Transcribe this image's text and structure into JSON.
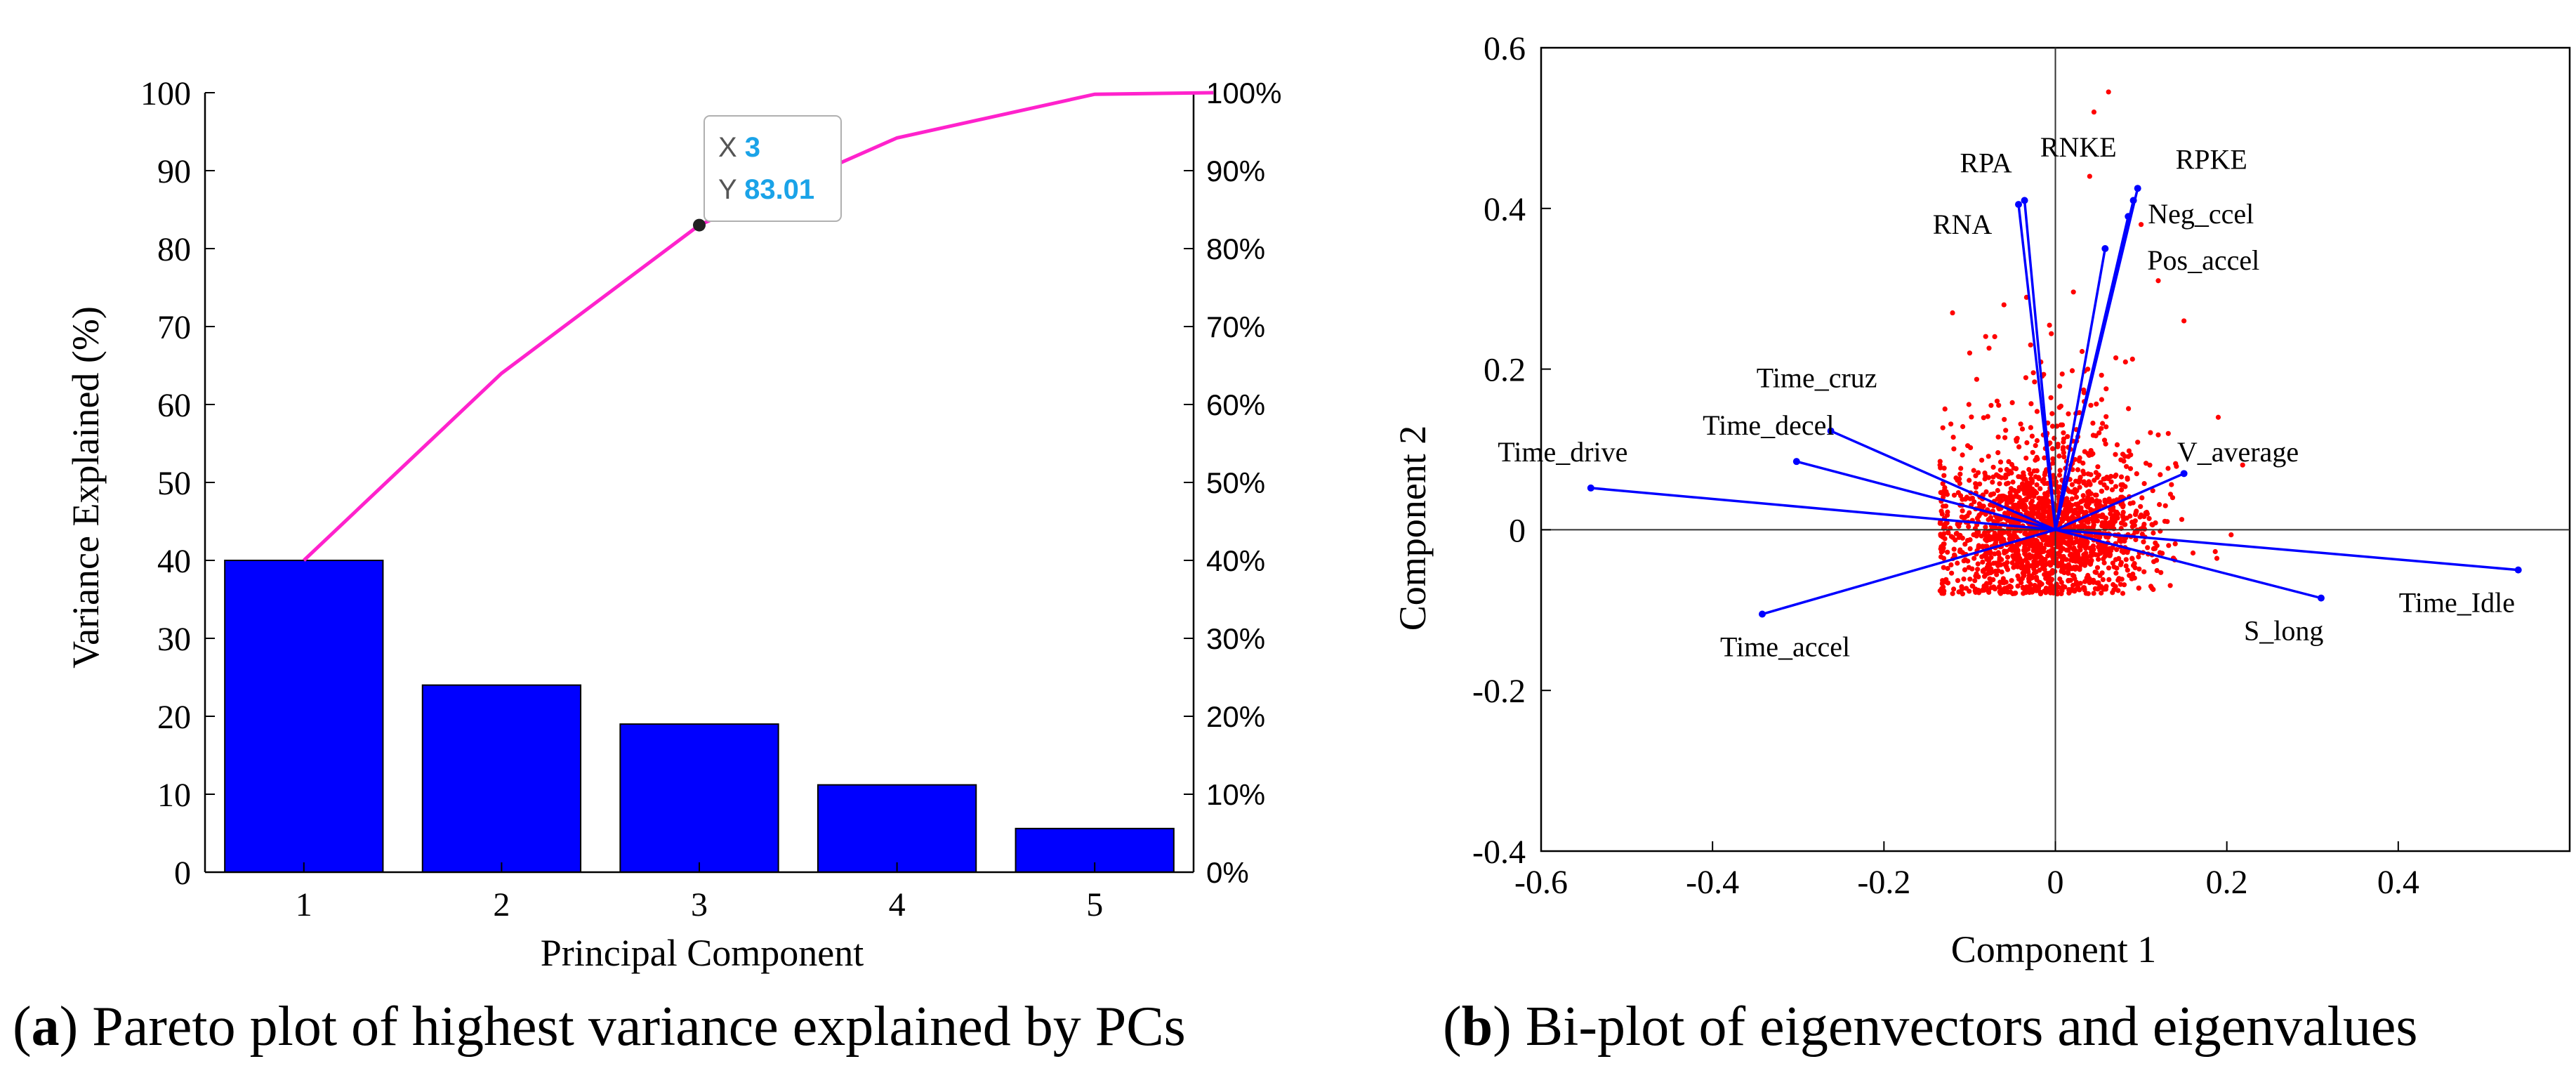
{
  "colors": {
    "bar": "#0000ff",
    "pareto_line": "#ff22cc",
    "scatter": "#ff0000",
    "vector": "#0000ff",
    "axis": "#000000",
    "datatip_value": "#1aa3e8"
  },
  "chart_data": [
    {
      "type": "bar",
      "subtype": "pareto",
      "caption_letter": "a",
      "caption_text": "Pareto plot of highest variance explained by PCs",
      "xlabel": "Principal Component",
      "ylabel": "Variance Explained (%)",
      "ylim": [
        0,
        100
      ],
      "y2lim": [
        0,
        100
      ],
      "y_ticks": [
        "0",
        "10",
        "20",
        "30",
        "40",
        "50",
        "60",
        "70",
        "80",
        "90",
        "100"
      ],
      "y2_ticks": [
        "0%",
        "10%",
        "20%",
        "30%",
        "40%",
        "50%",
        "60%",
        "70%",
        "80%",
        "90%",
        "100%"
      ],
      "categories": [
        "1",
        "2",
        "3",
        "4",
        "5"
      ],
      "values": [
        40.0,
        24.0,
        19.0,
        11.2,
        5.6
      ],
      "cumulative": [
        40.0,
        64.0,
        83.01,
        94.2,
        99.8,
        100
      ],
      "cumulative_x": [
        1,
        2,
        3,
        4,
        5,
        5.6
      ],
      "datatip": {
        "x_label": "X",
        "x_value": "3",
        "y_label": "Y",
        "y_value": "83.01",
        "x": 3,
        "y": 83.01
      },
      "grid": false
    },
    {
      "type": "scatter",
      "subtype": "biplot",
      "caption_letter": "b",
      "caption_text": "Bi-plot of eigenvectors and eigenvalues",
      "xlabel": "Component 1",
      "ylabel": "Component 2",
      "xlim": [
        -0.6,
        0.6
      ],
      "ylim": [
        -0.4,
        0.6
      ],
      "x_ticks": [
        "-0.6",
        "-0.4",
        "-0.2",
        "0",
        "0.2",
        "0.4"
      ],
      "y_ticks": [
        "-0.4",
        "-0.2",
        "0",
        "0.2",
        "0.4",
        "0.6"
      ],
      "vectors": [
        {
          "name": "RPA",
          "x": -0.036,
          "y": 0.41
        },
        {
          "name": "RNA",
          "x": -0.043,
          "y": 0.405
        },
        {
          "name": "RNKE",
          "x": 0.096,
          "y": 0.425
        },
        {
          "name": "RPKE",
          "x": 0.091,
          "y": 0.41
        },
        {
          "name": "Neg_ccel",
          "x": 0.085,
          "y": 0.39
        },
        {
          "name": "Pos_accel",
          "x": 0.058,
          "y": 0.35
        },
        {
          "name": "Time_cruz",
          "x": -0.262,
          "y": 0.123
        },
        {
          "name": "Time_decel",
          "x": -0.302,
          "y": 0.085
        },
        {
          "name": "Time_drive",
          "x": -0.542,
          "y": 0.052
        },
        {
          "name": "V_average",
          "x": 0.15,
          "y": 0.07
        },
        {
          "name": "Time_accel",
          "x": -0.342,
          "y": -0.105
        },
        {
          "name": "S_long",
          "x": 0.31,
          "y": -0.085
        },
        {
          "name": "Time_Idle",
          "x": 0.54,
          "y": -0.05
        }
      ],
      "grid": false
    }
  ]
}
